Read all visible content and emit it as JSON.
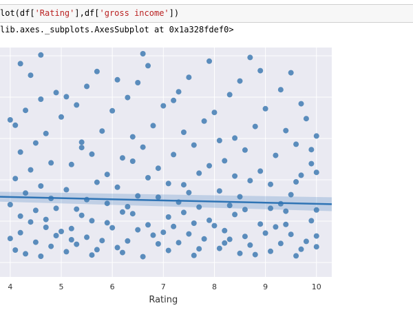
{
  "code_cell": {
    "prefix": "lot(df[",
    "arg1": "'Rating'",
    "sep": "],df[",
    "arg2": "'gross income'",
    "suffix": "])"
  },
  "output_text": "lib.axes._subplots.AxesSubplot at 0x1a328fdef0>",
  "chart_data": {
    "type": "scatter",
    "title": "",
    "xlabel": "Rating",
    "ylabel": "",
    "xlim": [
      3.8,
      10.3
    ],
    "ylim": [
      -3.5,
      52
    ],
    "xticks": [
      "4",
      "5",
      "6",
      "7",
      "8",
      "9",
      "10"
    ],
    "grid": true,
    "point_color": "#3a77b0",
    "fit_color": "#2f74b5",
    "regression": {
      "x_start": 3.8,
      "y_start": 15.9,
      "x_end": 10.3,
      "y_end": 14.1,
      "ci_halfwidth": 1.2
    },
    "points": [
      [
        4.0,
        5.8
      ],
      [
        4.2,
        7.2
      ],
      [
        4.5,
        4.9
      ],
      [
        4.1,
        3.0
      ],
      [
        4.7,
        8.5
      ],
      [
        4.3,
        2.1
      ],
      [
        4.9,
        6.5
      ],
      [
        4.4,
        9.8
      ],
      [
        4.6,
        1.5
      ],
      [
        4.8,
        3.9
      ],
      [
        4.2,
        11.2
      ],
      [
        4.5,
        12.6
      ],
      [
        4.0,
        14.0
      ],
      [
        4.7,
        10.4
      ],
      [
        4.3,
        16.8
      ],
      [
        4.9,
        13.1
      ],
      [
        4.6,
        18.5
      ],
      [
        4.1,
        20.3
      ],
      [
        4.4,
        22.4
      ],
      [
        4.8,
        24.1
      ],
      [
        4.2,
        26.7
      ],
      [
        4.5,
        28.9
      ],
      [
        4.7,
        31.2
      ],
      [
        4.0,
        34.5
      ],
      [
        4.3,
        36.8
      ],
      [
        4.6,
        39.5
      ],
      [
        4.9,
        41.1
      ],
      [
        4.4,
        45.3
      ],
      [
        4.2,
        48.1
      ],
      [
        4.6,
        50.2
      ],
      [
        4.1,
        33.2
      ],
      [
        4.8,
        15.5
      ],
      [
        5.1,
        2.6
      ],
      [
        5.3,
        4.4
      ],
      [
        5.5,
        6.1
      ],
      [
        5.2,
        8.2
      ],
      [
        5.7,
        3.1
      ],
      [
        5.9,
        9.6
      ],
      [
        5.4,
        11.4
      ],
      [
        5.6,
        1.8
      ],
      [
        5.8,
        5.3
      ],
      [
        5.0,
        7.5
      ],
      [
        5.3,
        12.9
      ],
      [
        5.5,
        15.2
      ],
      [
        5.1,
        17.6
      ],
      [
        5.7,
        19.4
      ],
      [
        5.9,
        21.3
      ],
      [
        5.2,
        23.7
      ],
      [
        5.6,
        26.2
      ],
      [
        5.4,
        29.1
      ],
      [
        5.8,
        31.8
      ],
      [
        5.0,
        35.2
      ],
      [
        5.3,
        38.1
      ],
      [
        5.5,
        42.6
      ],
      [
        5.7,
        46.2
      ],
      [
        5.1,
        40.1
      ],
      [
        5.9,
        14.3
      ],
      [
        5.4,
        27.8
      ],
      [
        5.6,
        10.1
      ],
      [
        5.2,
        5.5
      ],
      [
        6.1,
        3.6
      ],
      [
        6.3,
        5.2
      ],
      [
        6.5,
        7.9
      ],
      [
        6.2,
        2.4
      ],
      [
        6.7,
        9.1
      ],
      [
        6.9,
        4.5
      ],
      [
        6.4,
        11.8
      ],
      [
        6.6,
        1.4
      ],
      [
        6.8,
        6.6
      ],
      [
        6.0,
        8.4
      ],
      [
        6.3,
        13.5
      ],
      [
        6.5,
        16.1
      ],
      [
        6.1,
        18.2
      ],
      [
        6.7,
        20.5
      ],
      [
        6.9,
        22.8
      ],
      [
        6.2,
        25.3
      ],
      [
        6.6,
        27.9
      ],
      [
        6.4,
        30.4
      ],
      [
        6.8,
        33.1
      ],
      [
        6.0,
        36.7
      ],
      [
        6.3,
        39.9
      ],
      [
        6.5,
        43.5
      ],
      [
        6.7,
        47.6
      ],
      [
        6.6,
        50.5
      ],
      [
        6.1,
        44.2
      ],
      [
        6.9,
        15.8
      ],
      [
        6.4,
        24.5
      ],
      [
        6.2,
        12.2
      ],
      [
        7.1,
        2.9
      ],
      [
        7.3,
        4.8
      ],
      [
        7.5,
        6.9
      ],
      [
        7.2,
        8.7
      ],
      [
        7.7,
        3.3
      ],
      [
        7.9,
        10.2
      ],
      [
        7.4,
        12.1
      ],
      [
        7.6,
        1.7
      ],
      [
        7.8,
        5.7
      ],
      [
        7.0,
        7.3
      ],
      [
        7.3,
        14.6
      ],
      [
        7.5,
        16.9
      ],
      [
        7.1,
        19.1
      ],
      [
        7.7,
        21.6
      ],
      [
        7.9,
        23.4
      ],
      [
        7.2,
        26.1
      ],
      [
        7.6,
        28.4
      ],
      [
        7.4,
        31.5
      ],
      [
        7.8,
        34.2
      ],
      [
        7.0,
        37.9
      ],
      [
        7.3,
        41.3
      ],
      [
        7.5,
        44.8
      ],
      [
        7.9,
        48.7
      ],
      [
        7.2,
        39.2
      ],
      [
        7.7,
        13.4
      ],
      [
        7.4,
        18.8
      ],
      [
        7.6,
        9.5
      ],
      [
        7.1,
        11.0
      ],
      [
        8.1,
        3.4
      ],
      [
        8.3,
        5.6
      ],
      [
        8.5,
        2.2
      ],
      [
        8.2,
        7.7
      ],
      [
        8.7,
        4.2
      ],
      [
        8.9,
        9.3
      ],
      [
        8.4,
        11.6
      ],
      [
        8.6,
        6.3
      ],
      [
        8.8,
        1.9
      ],
      [
        8.0,
        8.9
      ],
      [
        8.3,
        13.8
      ],
      [
        8.5,
        15.9
      ],
      [
        8.1,
        17.3
      ],
      [
        8.7,
        19.8
      ],
      [
        8.9,
        22.1
      ],
      [
        8.2,
        24.6
      ],
      [
        8.6,
        27.2
      ],
      [
        8.4,
        30.1
      ],
      [
        8.8,
        32.9
      ],
      [
        8.0,
        36.3
      ],
      [
        8.3,
        40.6
      ],
      [
        8.5,
        43.9
      ],
      [
        8.7,
        49.6
      ],
      [
        8.9,
        46.4
      ],
      [
        8.1,
        29.5
      ],
      [
        8.6,
        12.8
      ],
      [
        8.4,
        20.9
      ],
      [
        8.2,
        4.7
      ],
      [
        9.1,
        2.7
      ],
      [
        9.3,
        4.6
      ],
      [
        9.5,
        6.8
      ],
      [
        9.2,
        8.6
      ],
      [
        9.7,
        3.2
      ],
      [
        9.9,
        10.1
      ],
      [
        9.4,
        12.4
      ],
      [
        9.6,
        1.6
      ],
      [
        9.8,
        5.1
      ],
      [
        9.0,
        7.1
      ],
      [
        9.3,
        14.2
      ],
      [
        9.5,
        16.4
      ],
      [
        9.1,
        18.9
      ],
      [
        9.7,
        21.1
      ],
      [
        9.9,
        23.9
      ],
      [
        9.2,
        25.9
      ],
      [
        9.6,
        28.6
      ],
      [
        9.4,
        31.9
      ],
      [
        9.8,
        34.8
      ],
      [
        9.0,
        37.2
      ],
      [
        9.3,
        41.8
      ],
      [
        9.5,
        45.9
      ],
      [
        9.7,
        38.4
      ],
      [
        9.9,
        27.3
      ],
      [
        9.1,
        13.1
      ],
      [
        9.6,
        19.5
      ],
      [
        9.4,
        9.2
      ],
      [
        10.0,
        6.4
      ],
      [
        10.0,
        12.7
      ],
      [
        10.0,
        21.8
      ],
      [
        10.0,
        30.6
      ],
      [
        10.0,
        3.8
      ]
    ]
  }
}
